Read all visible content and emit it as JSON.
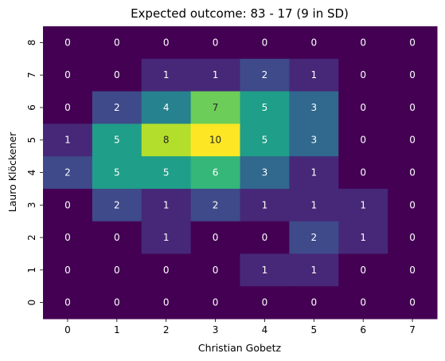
{
  "chart_data": {
    "type": "heatmap",
    "title": "Expected outcome: 83 - 17 (9 in SD)",
    "xlabel": "Christian Gobetz",
    "ylabel": "Lauro Klöckener",
    "x_categories": [
      "0",
      "1",
      "2",
      "3",
      "4",
      "5",
      "6",
      "7"
    ],
    "y_categories": [
      "8",
      "7",
      "6",
      "5",
      "4",
      "3",
      "2",
      "1",
      "0"
    ],
    "values": [
      [
        0,
        0,
        0,
        0,
        0,
        0,
        0,
        0
      ],
      [
        0,
        0,
        1,
        1,
        2,
        1,
        0,
        0
      ],
      [
        0,
        2,
        4,
        7,
        5,
        3,
        0,
        0
      ],
      [
        1,
        5,
        8,
        10,
        5,
        3,
        0,
        0
      ],
      [
        2,
        5,
        5,
        6,
        3,
        1,
        0,
        0
      ],
      [
        0,
        2,
        1,
        2,
        1,
        1,
        1,
        0
      ],
      [
        0,
        0,
        1,
        0,
        0,
        2,
        1,
        0
      ],
      [
        0,
        0,
        0,
        0,
        1,
        1,
        0,
        0
      ],
      [
        0,
        0,
        0,
        0,
        0,
        0,
        0,
        0
      ]
    ],
    "colormap": "viridis",
    "vmin": 0,
    "vmax": 10,
    "colorbar": false,
    "grid": false
  }
}
